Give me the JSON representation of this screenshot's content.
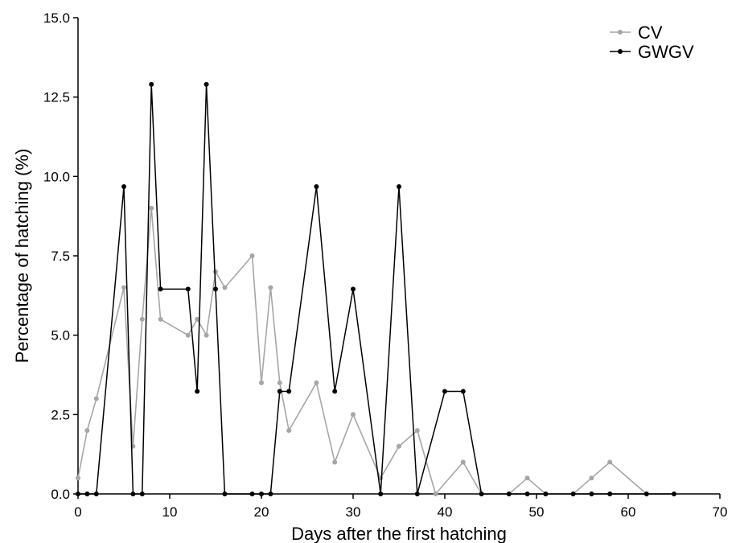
{
  "chart_data": {
    "type": "line",
    "title": "",
    "xlabel": "Days after the first hatching",
    "ylabel": "Percentage of hatching (%)",
    "xlim": [
      0,
      70
    ],
    "ylim": [
      0,
      15
    ],
    "xticks": [
      0,
      10,
      20,
      30,
      40,
      50,
      60,
      70
    ],
    "yticks": [
      0,
      2.5,
      5,
      7.5,
      10,
      12.5,
      15
    ],
    "xtick_labels": [
      "0",
      "10",
      "20",
      "30",
      "40",
      "50",
      "60",
      "70"
    ],
    "ytick_labels": [
      "0.0",
      "2.5",
      "5.0",
      "7.5",
      "10.0",
      "12.5",
      "15.0"
    ],
    "grid": false,
    "legend_position": "top-right",
    "series": [
      {
        "name": "CV",
        "color": "#a6a6a6",
        "x": [
          0,
          1,
          2,
          5,
          6,
          7,
          8,
          9,
          12,
          13,
          14,
          15,
          16,
          19,
          20,
          21,
          22,
          23,
          26,
          28,
          30,
          33,
          35,
          37,
          39,
          42,
          44,
          47,
          49,
          51,
          54,
          56,
          58,
          62
        ],
        "y": [
          0.5,
          2.0,
          3.0,
          6.5,
          1.5,
          5.5,
          9.0,
          5.5,
          5.0,
          5.5,
          5.0,
          7.0,
          6.5,
          7.5,
          3.5,
          6.5,
          3.5,
          2.0,
          3.5,
          1.0,
          2.5,
          0.5,
          1.5,
          2.0,
          0,
          1.0,
          0,
          0,
          0.5,
          0,
          0,
          0.5,
          1.0,
          0
        ]
      },
      {
        "name": "GWGV",
        "color": "#000000",
        "x": [
          0,
          1,
          2,
          5,
          6,
          7,
          8,
          9,
          12,
          13,
          14,
          15,
          16,
          19,
          20,
          21,
          22,
          23,
          26,
          28,
          30,
          33,
          35,
          37,
          40,
          42,
          44,
          47,
          49,
          51,
          54,
          56,
          58,
          62,
          65
        ],
        "y": [
          0,
          0,
          0,
          9.68,
          0,
          0,
          12.9,
          6.45,
          6.45,
          3.23,
          12.9,
          6.45,
          0,
          0,
          0,
          0,
          3.23,
          3.23,
          9.68,
          3.23,
          6.45,
          0,
          9.68,
          0,
          3.23,
          3.23,
          0,
          0,
          0,
          0,
          0,
          0,
          0,
          0,
          0
        ]
      }
    ]
  }
}
